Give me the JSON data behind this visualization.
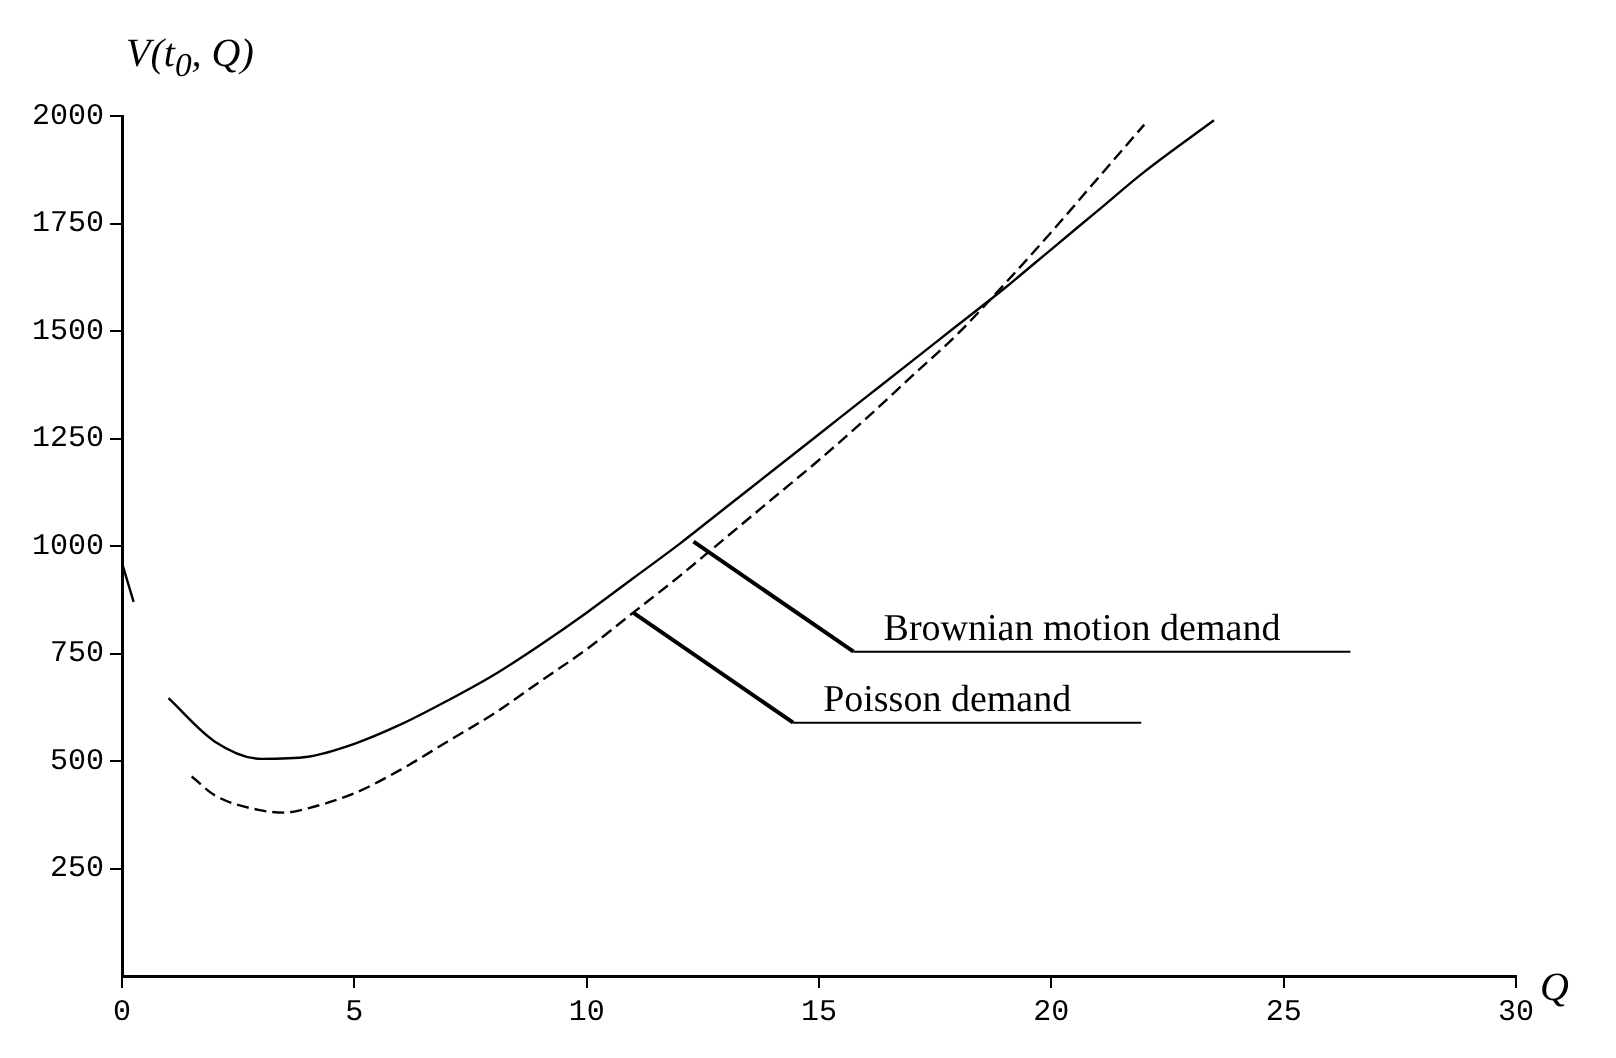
{
  "chart_data": {
    "type": "line",
    "xlabel": "Q",
    "ylabel": "V(t$_{0}$, Q)",
    "xlim": [
      0,
      30
    ],
    "xticks": [
      0,
      5,
      10,
      15,
      20,
      25,
      30
    ],
    "ylim": [
      0,
      2000
    ],
    "yticks": [
      250,
      500,
      750,
      1000,
      1250,
      1500,
      1750,
      2000
    ],
    "grid": false,
    "legend": false,
    "marker": "none",
    "series": [
      {
        "color": "#000000",
        "line_style": "solid",
        "x": [
          0,
          0.25,
          0.6,
          1,
          2,
          3,
          4,
          5,
          6,
          7,
          8,
          9,
          10,
          11,
          12,
          13,
          14,
          15,
          16,
          17,
          18,
          19,
          20,
          21,
          22,
          23.5
        ],
        "values": [
          960,
          870,
          null,
          646,
          545,
          505,
          510,
          540,
          585,
          640,
          700,
          770,
          845,
          925,
          1005,
          1090,
          1175,
          1260,
          1345,
          1430,
          1515,
          1600,
          1690,
          1780,
          1870,
          1990
        ]
      },
      {
        "color": "#000000",
        "line_style": "dashed",
        "x": [
          1.5,
          2,
          3,
          3.5,
          4,
          5,
          6,
          7,
          8,
          9,
          10,
          11,
          12,
          13,
          14,
          15,
          16,
          17,
          18,
          19,
          20,
          21,
          22
        ],
        "values": [
          464,
          420,
          385,
          380,
          390,
          425,
          480,
          545,
          610,
          685,
          760,
          845,
          930,
          1020,
          1110,
          1200,
          1295,
          1395,
          1495,
          1610,
          1730,
          1855,
          1980
        ]
      }
    ],
    "annotations": [
      {
        "text": "Brownian motion demand",
        "x": 12.3,
        "y": 1010
      },
      {
        "text": "Poisson demand",
        "x": 11,
        "y": 845
      }
    ]
  }
}
